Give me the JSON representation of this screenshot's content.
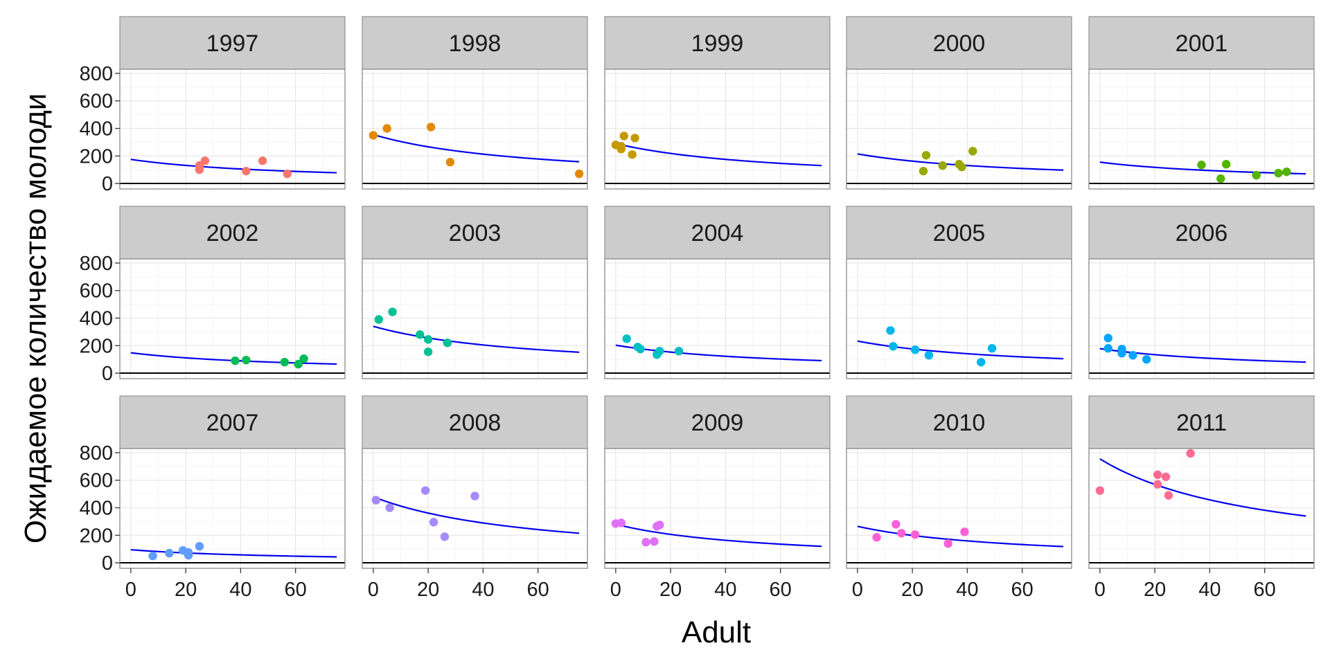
{
  "chart_data": {
    "type": "scatter",
    "facet_variable": "year",
    "xlabel": "Adult",
    "ylabel": "Ожидаемое количество молоди",
    "xlim": [
      -4,
      78
    ],
    "ylim": [
      -40,
      830
    ],
    "x_ticks": [
      0,
      20,
      40,
      60
    ],
    "y_ticks": [
      0,
      200,
      400,
      600,
      800
    ],
    "grid": true,
    "legend": "none",
    "fit_line_color": "#0000ee",
    "zero_line_color": "#000000",
    "strip_color": "#cccccc",
    "panel_border_color": "#808080",
    "grid_major_color": "#e8e8e8",
    "grid_minor_color": "#f4f4f4",
    "panels": [
      {
        "label": "1997",
        "color": "#f8766d",
        "fit": {
          "x0": 0,
          "y0": 175,
          "x1": 75,
          "y1": 78
        },
        "points": [
          [
            25,
            130
          ],
          [
            25,
            100
          ],
          [
            27,
            165
          ],
          [
            42,
            90
          ],
          [
            48,
            165
          ],
          [
            57,
            70
          ]
        ]
      },
      {
        "label": "1998",
        "color": "#e38900",
        "fit": {
          "x0": 0,
          "y0": 355,
          "x1": 75,
          "y1": 158
        },
        "points": [
          [
            0,
            350
          ],
          [
            5,
            400
          ],
          [
            21,
            410
          ],
          [
            28,
            155
          ],
          [
            75,
            70
          ]
        ]
      },
      {
        "label": "1999",
        "color": "#c49a00",
        "fit": {
          "x0": 0,
          "y0": 290,
          "x1": 75,
          "y1": 130
        },
        "points": [
          [
            0,
            280
          ],
          [
            2,
            250
          ],
          [
            3,
            345
          ],
          [
            6,
            210
          ],
          [
            7,
            330
          ],
          [
            2,
            270
          ]
        ]
      },
      {
        "label": "2000",
        "color": "#99a800",
        "fit": {
          "x0": 0,
          "y0": 215,
          "x1": 75,
          "y1": 97
        },
        "points": [
          [
            24,
            90
          ],
          [
            25,
            205
          ],
          [
            31,
            130
          ],
          [
            37,
            140
          ],
          [
            38,
            120
          ],
          [
            42,
            235
          ]
        ]
      },
      {
        "label": "2001",
        "color": "#53b400",
        "fit": {
          "x0": 0,
          "y0": 155,
          "x1": 75,
          "y1": 70
        },
        "points": [
          [
            37,
            135
          ],
          [
            44,
            35
          ],
          [
            46,
            140
          ],
          [
            57,
            60
          ],
          [
            65,
            75
          ],
          [
            68,
            85
          ]
        ]
      },
      {
        "label": "2002",
        "color": "#00bc56",
        "fit": {
          "x0": 0,
          "y0": 148,
          "x1": 75,
          "y1": 66
        },
        "points": [
          [
            38,
            90
          ],
          [
            42,
            95
          ],
          [
            56,
            80
          ],
          [
            61,
            65
          ],
          [
            63,
            105
          ]
        ]
      },
      {
        "label": "2003",
        "color": "#00c094",
        "fit": {
          "x0": 0,
          "y0": 340,
          "x1": 75,
          "y1": 152
        },
        "points": [
          [
            2,
            390
          ],
          [
            7,
            445
          ],
          [
            17,
            280
          ],
          [
            20,
            245
          ],
          [
            20,
            155
          ],
          [
            27,
            220
          ]
        ]
      },
      {
        "label": "2004",
        "color": "#00bfc4",
        "fit": {
          "x0": 0,
          "y0": 203,
          "x1": 75,
          "y1": 91
        },
        "points": [
          [
            4,
            250
          ],
          [
            8,
            190
          ],
          [
            9,
            175
          ],
          [
            15,
            135
          ],
          [
            16,
            160
          ],
          [
            23,
            160
          ]
        ]
      },
      {
        "label": "2005",
        "color": "#00b6eb",
        "fit": {
          "x0": 0,
          "y0": 233,
          "x1": 75,
          "y1": 105
        },
        "points": [
          [
            12,
            310
          ],
          [
            13,
            195
          ],
          [
            21,
            170
          ],
          [
            26,
            130
          ],
          [
            45,
            80
          ],
          [
            49,
            180
          ]
        ]
      },
      {
        "label": "2006",
        "color": "#06a4ff",
        "fit": {
          "x0": 0,
          "y0": 178,
          "x1": 75,
          "y1": 80
        },
        "points": [
          [
            3,
            255
          ],
          [
            3,
            180
          ],
          [
            8,
            175
          ],
          [
            8,
            145
          ],
          [
            12,
            130
          ],
          [
            17,
            100
          ]
        ]
      },
      {
        "label": "2007",
        "color": "#619cff",
        "fit": {
          "x0": 0,
          "y0": 95,
          "x1": 75,
          "y1": 43
        },
        "points": [
          [
            8,
            50
          ],
          [
            14,
            70
          ],
          [
            19,
            90
          ],
          [
            21,
            75
          ],
          [
            21,
            55
          ],
          [
            25,
            120
          ]
        ]
      },
      {
        "label": "2008",
        "color": "#a58aff",
        "fit": {
          "x0": 0,
          "y0": 480,
          "x1": 75,
          "y1": 215
        },
        "points": [
          [
            1,
            455
          ],
          [
            6,
            400
          ],
          [
            19,
            525
          ],
          [
            22,
            295
          ],
          [
            26,
            190
          ],
          [
            37,
            485
          ]
        ]
      },
      {
        "label": "2009",
        "color": "#df70f8",
        "fit": {
          "x0": 0,
          "y0": 280,
          "x1": 75,
          "y1": 120
        },
        "points": [
          [
            0,
            285
          ],
          [
            2,
            290
          ],
          [
            11,
            150
          ],
          [
            14,
            155
          ],
          [
            15,
            265
          ],
          [
            16,
            275
          ]
        ]
      },
      {
        "label": "2010",
        "color": "#fb61d7",
        "fit": {
          "x0": 0,
          "y0": 265,
          "x1": 75,
          "y1": 118
        },
        "points": [
          [
            7,
            185
          ],
          [
            14,
            280
          ],
          [
            16,
            215
          ],
          [
            21,
            205
          ],
          [
            33,
            140
          ],
          [
            39,
            225
          ]
        ]
      },
      {
        "label": "2011",
        "color": "#ff6c91",
        "fit": {
          "x0": 0,
          "y0": 755,
          "x1": 75,
          "y1": 340
        },
        "points": [
          [
            0,
            525
          ],
          [
            21,
            640
          ],
          [
            21,
            570
          ],
          [
            24,
            625
          ],
          [
            25,
            490
          ],
          [
            33,
            795
          ]
        ]
      }
    ]
  }
}
